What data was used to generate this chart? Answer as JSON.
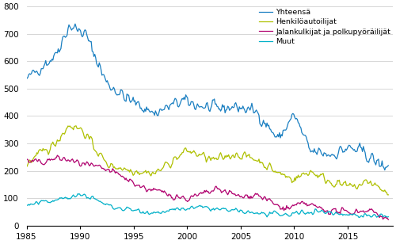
{
  "title": "",
  "xlim": [
    1985.0,
    2019.2
  ],
  "ylim": [
    0,
    800
  ],
  "yticks": [
    0,
    100,
    200,
    300,
    400,
    500,
    600,
    700,
    800
  ],
  "xticks": [
    1985,
    1990,
    1995,
    2000,
    2005,
    2010,
    2015
  ],
  "colors": {
    "Yhteensa": "#1a7fc1",
    "Henkiloautoilijat": "#afc000",
    "Jalankulkijat": "#b0006e",
    "Muut": "#00b0c8"
  },
  "legend_labels": [
    "Yhteensä",
    "Henkilöautoilijat",
    "Jalankulkijat ja polkupyöräilijät",
    "Muut"
  ],
  "background_color": "#ffffff",
  "grid_color": "#d0d0d0",
  "line_width": 0.9
}
